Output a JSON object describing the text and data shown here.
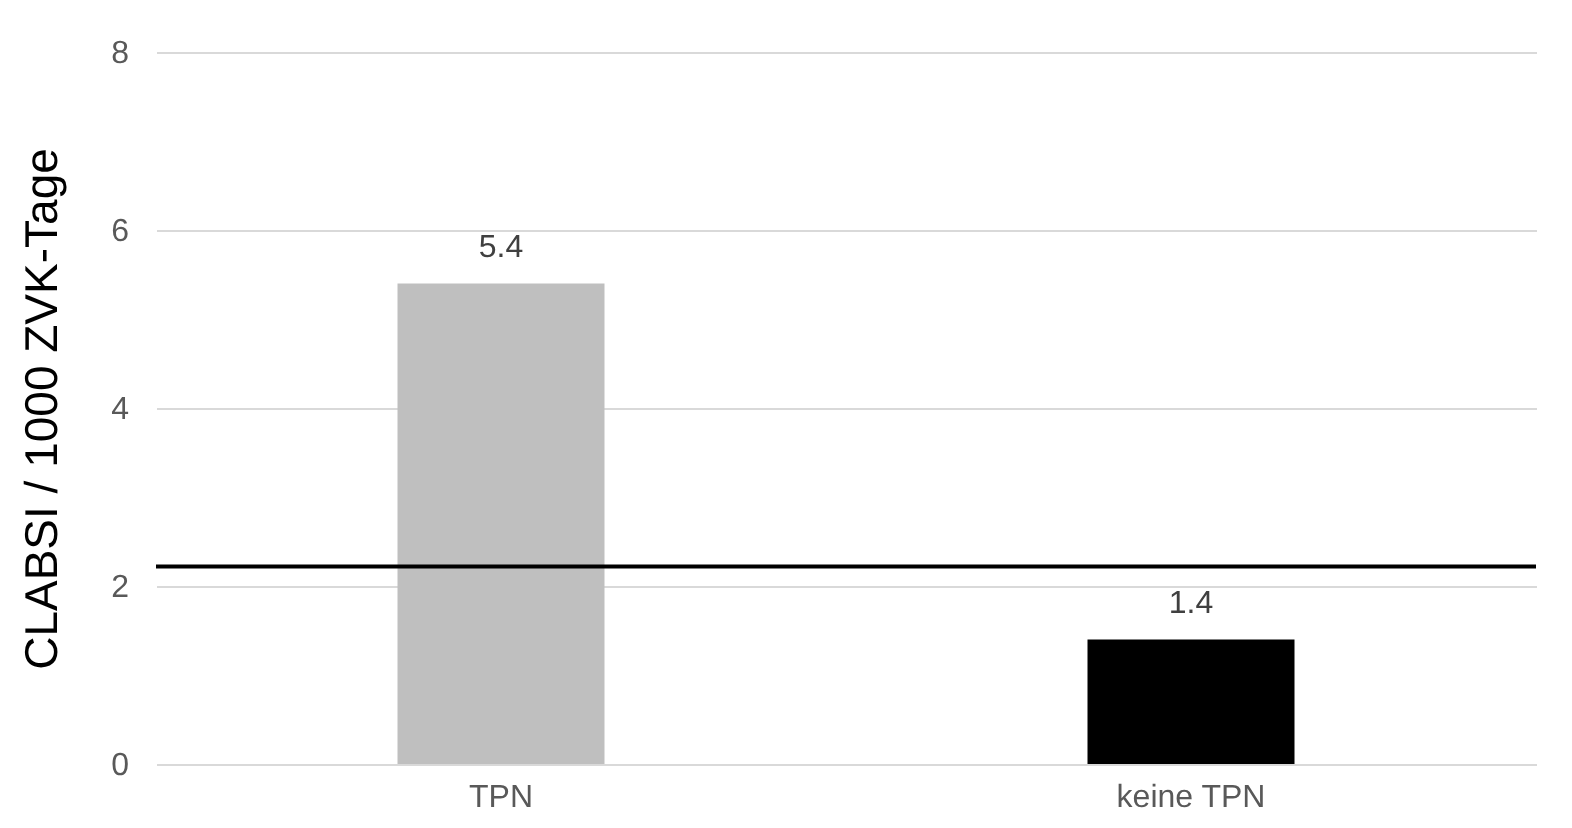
{
  "chart_data": {
    "type": "bar",
    "ylabel": "CLABSI / 1000 ZVK-Tage",
    "categories": [
      "TPN",
      "keine TPN"
    ],
    "values": [
      5.4,
      1.4
    ],
    "colors": [
      "#bfbfbf",
      "#000000"
    ],
    "ylim": [
      0,
      8
    ],
    "yticks": [
      0,
      2,
      4,
      6,
      8
    ],
    "grid": "y",
    "data_labels": true,
    "ref_lines": [
      {
        "axis": "y",
        "value": 2.22,
        "color": "#000000"
      }
    ]
  }
}
